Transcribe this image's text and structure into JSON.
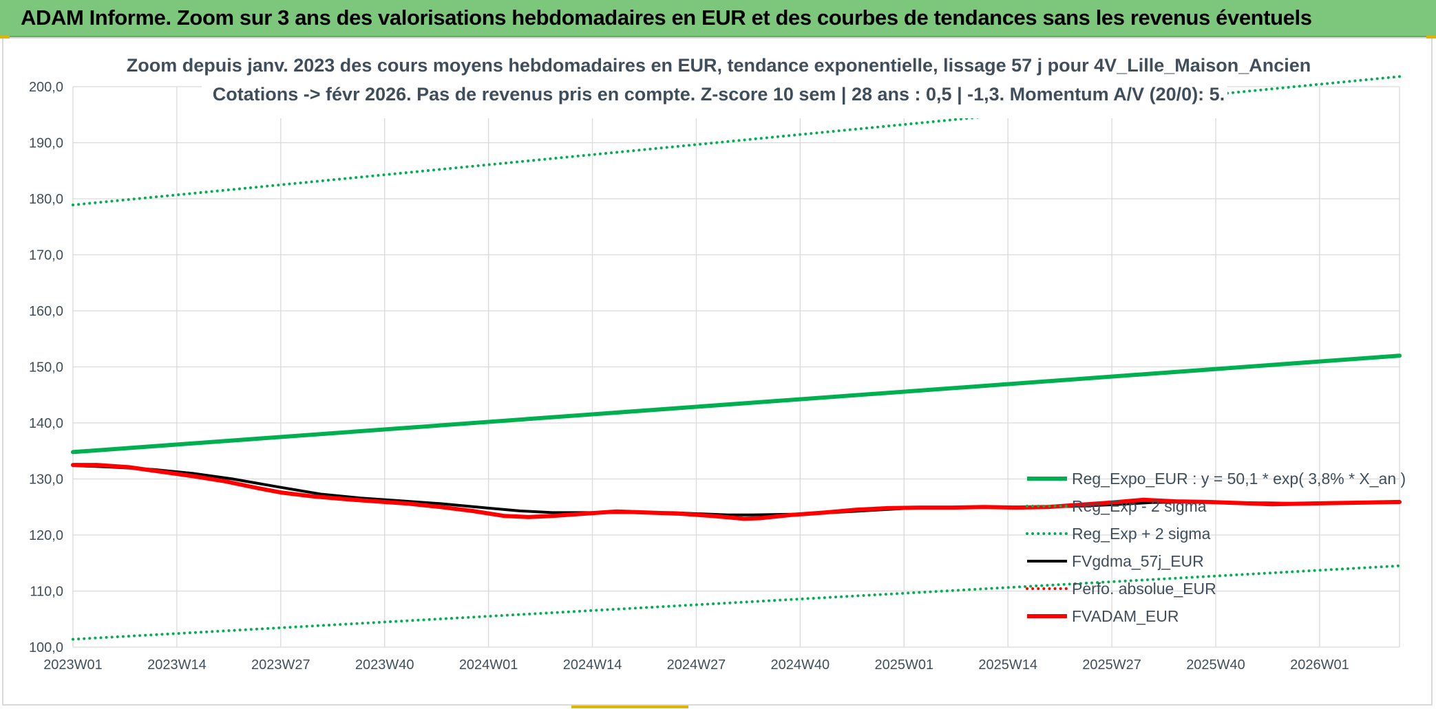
{
  "banner": {
    "title": "ADAM Informe. Zoom sur 3 ans des valorisations hebdomadaires en EUR et des courbes de tendances sans les revenus éventuels"
  },
  "colors": {
    "banner_bg": "#7cc77c",
    "trend": "#00b050",
    "smoothed": "#000000",
    "fvadam": "#ff0000",
    "text": "#404e5c",
    "grid": "#d9d9d9"
  },
  "chart_data": {
    "type": "line",
    "title": "Zoom depuis janv. 2023 des cours moyens hebdomadaires en EUR, tendance exponentielle, lissage 57 j pour 4V_Lille_Maison_Ancien",
    "subtitle": "Cotations -> févr 2026. Pas de revenus pris en compte. Z-score 10 sem | 28 ans : 0,5 | -1,3. Momentum A/V (20/0): 5.",
    "xlabel": "",
    "ylabel": "",
    "x_ticks": [
      "2023W01",
      "2023W14",
      "2023W27",
      "2023W40",
      "2024W01",
      "2024W14",
      "2024W27",
      "2024W40",
      "2025W01",
      "2025W14",
      "2025W27",
      "2025W40",
      "2026W01"
    ],
    "y_ticks": [
      "100,0",
      "110,0",
      "120,0",
      "130,0",
      "140,0",
      "150,0",
      "160,0",
      "170,0",
      "180,0",
      "190,0",
      "200,0"
    ],
    "ylim": [
      100,
      200
    ],
    "x_range_weeks": [
      0,
      166
    ],
    "grid": true,
    "legend_position": "bottom-right",
    "series": [
      {
        "name": "Reg_Expo_EUR : y = 50,1 * exp( 3,8% *  X_an )",
        "style": "solid",
        "color": "#00b050",
        "x": [
          0,
          166
        ],
        "values": [
          134.8,
          152.0
        ]
      },
      {
        "name": "Reg_Exp - 2 sigma",
        "style": "dotted",
        "color": "#00b050",
        "x": [
          0,
          166
        ],
        "values": [
          101.4,
          114.5
        ]
      },
      {
        "name": "Reg_Exp + 2 sigma",
        "style": "dotted",
        "color": "#00b050",
        "x": [
          0,
          166
        ],
        "values": [
          178.9,
          201.8
        ]
      },
      {
        "name": "FVgdma_57j_EUR",
        "style": "solid",
        "color": "#000000",
        "x": [
          0,
          5,
          10,
          15,
          20,
          26,
          31,
          36,
          41,
          46,
          52,
          56,
          60,
          65,
          70,
          75,
          78,
          82,
          85,
          90,
          95,
          100,
          105,
          110,
          115,
          120,
          125,
          130,
          135,
          140,
          145,
          150,
          155,
          160,
          166
        ],
        "values": [
          132.4,
          132.1,
          131.7,
          131.0,
          130.0,
          128.5,
          127.3,
          126.6,
          126.1,
          125.6,
          124.8,
          124.3,
          124.0,
          124.0,
          124.0,
          124.0,
          123.8,
          123.6,
          123.6,
          123.7,
          124.0,
          124.4,
          124.8,
          124.9,
          125.0,
          125.0,
          125.1,
          125.4,
          125.8,
          125.9,
          125.8,
          125.7,
          125.6,
          125.7,
          125.8
        ]
      },
      {
        "name": "Perfo. absolue_EUR",
        "style": "dotted",
        "color": "#ff0000",
        "x": [],
        "values": []
      },
      {
        "name": "FVADAM_EUR",
        "style": "solid",
        "color": "#ff0000",
        "x": [
          0,
          3,
          7,
          11,
          15,
          19,
          23,
          26,
          30,
          34,
          38,
          42,
          46,
          50,
          54,
          57,
          60,
          64,
          68,
          72,
          76,
          80,
          84,
          86,
          90,
          94,
          98,
          102,
          106,
          110,
          114,
          118,
          122,
          126,
          130,
          134,
          138,
          142,
          146,
          150,
          154,
          158,
          162,
          166
        ],
        "values": [
          132.5,
          132.5,
          132.1,
          131.3,
          130.5,
          129.6,
          128.4,
          127.6,
          126.9,
          126.4,
          126.0,
          125.6,
          125.0,
          124.3,
          123.4,
          123.2,
          123.4,
          123.8,
          124.2,
          124.0,
          123.8,
          123.4,
          122.9,
          123.0,
          123.6,
          124.0,
          124.5,
          124.8,
          124.9,
          124.9,
          125.0,
          124.9,
          125.0,
          125.4,
          125.8,
          126.3,
          126.0,
          125.9,
          125.7,
          125.5,
          125.6,
          125.7,
          125.8,
          125.9
        ]
      }
    ]
  }
}
